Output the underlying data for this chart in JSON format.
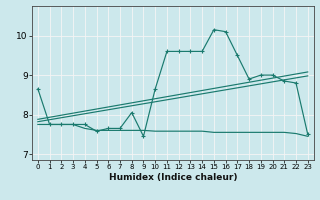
{
  "title": "",
  "xlabel": "Humidex (Indice chaleur)",
  "bg_color": "#cce8ec",
  "grid_color": "#f5f5f5",
  "line_color": "#1a7a6e",
  "xlim": [
    -0.5,
    23.5
  ],
  "ylim": [
    6.85,
    10.75
  ],
  "xticks": [
    0,
    1,
    2,
    3,
    4,
    5,
    6,
    7,
    8,
    9,
    10,
    11,
    12,
    13,
    14,
    15,
    16,
    17,
    18,
    19,
    20,
    21,
    22,
    23
  ],
  "yticks": [
    7,
    8,
    9,
    10
  ],
  "main_x": [
    0,
    1,
    2,
    3,
    4,
    5,
    6,
    7,
    8,
    9,
    10,
    11,
    12,
    13,
    14,
    15,
    16,
    17,
    18,
    19,
    20,
    21,
    22,
    23
  ],
  "main_y": [
    8.65,
    7.75,
    7.75,
    7.75,
    7.75,
    7.58,
    7.65,
    7.65,
    8.05,
    7.45,
    8.65,
    9.6,
    9.6,
    9.6,
    9.6,
    10.15,
    10.1,
    9.5,
    8.9,
    9.0,
    9.0,
    8.85,
    8.8,
    7.5
  ],
  "trend1_x": [
    0,
    23
  ],
  "trend1_y": [
    7.88,
    9.08
  ],
  "trend2_x": [
    0,
    23
  ],
  "trend2_y": [
    7.82,
    8.98
  ],
  "flat_x": [
    0,
    1,
    2,
    3,
    4,
    5,
    6,
    7,
    8,
    9,
    10,
    11,
    12,
    13,
    14,
    15,
    16,
    17,
    18,
    19,
    20,
    21,
    22,
    23
  ],
  "flat_y": [
    7.75,
    7.75,
    7.75,
    7.75,
    7.65,
    7.6,
    7.6,
    7.6,
    7.6,
    7.6,
    7.58,
    7.58,
    7.58,
    7.58,
    7.58,
    7.55,
    7.55,
    7.55,
    7.55,
    7.55,
    7.55,
    7.55,
    7.52,
    7.45
  ]
}
